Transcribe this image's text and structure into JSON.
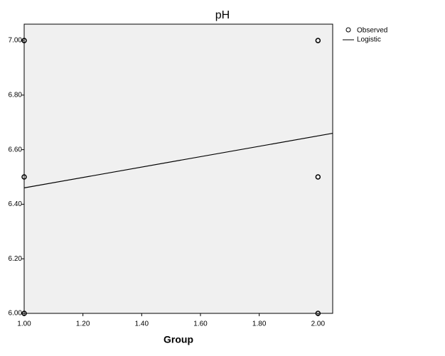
{
  "chart_data": {
    "type": "scatter",
    "title": "pH",
    "x_label": "Group",
    "series": [
      {
        "name": "Observed",
        "type": "scatter",
        "color": "#000000",
        "x": [
          1,
          1,
          1,
          2,
          2,
          2
        ],
        "values": [
          7.0,
          6.5,
          6.0,
          7.0,
          6.5,
          6.0
        ]
      },
      {
        "name": "Logistic",
        "type": "line",
        "color": "#000000",
        "x": [
          1,
          2.05
        ],
        "values": [
          6.46,
          6.66
        ]
      }
    ],
    "xlim": [
      1,
      2.05
    ],
    "ylim": [
      6,
      7.06
    ],
    "xticks": [
      {
        "value": 1,
        "label": "1.00"
      },
      {
        "value": 1.2,
        "label": "1.20"
      },
      {
        "value": 1.4,
        "label": "1.40"
      },
      {
        "value": 1.6,
        "label": "1.60"
      },
      {
        "value": 1.8,
        "label": "1.80"
      },
      {
        "value": 2,
        "label": "2.00"
      }
    ],
    "yticks": [
      {
        "value": 6,
        "label": "6.00"
      },
      {
        "value": 6.2,
        "label": "6.20"
      },
      {
        "value": 6.4,
        "label": "6.40"
      },
      {
        "value": 6.6,
        "label": "6.60"
      },
      {
        "value": 6.8,
        "label": "6.80"
      },
      {
        "value": 7,
        "label": "7.00"
      }
    ],
    "plot_background": "#f0f0f0",
    "legend": "right"
  }
}
